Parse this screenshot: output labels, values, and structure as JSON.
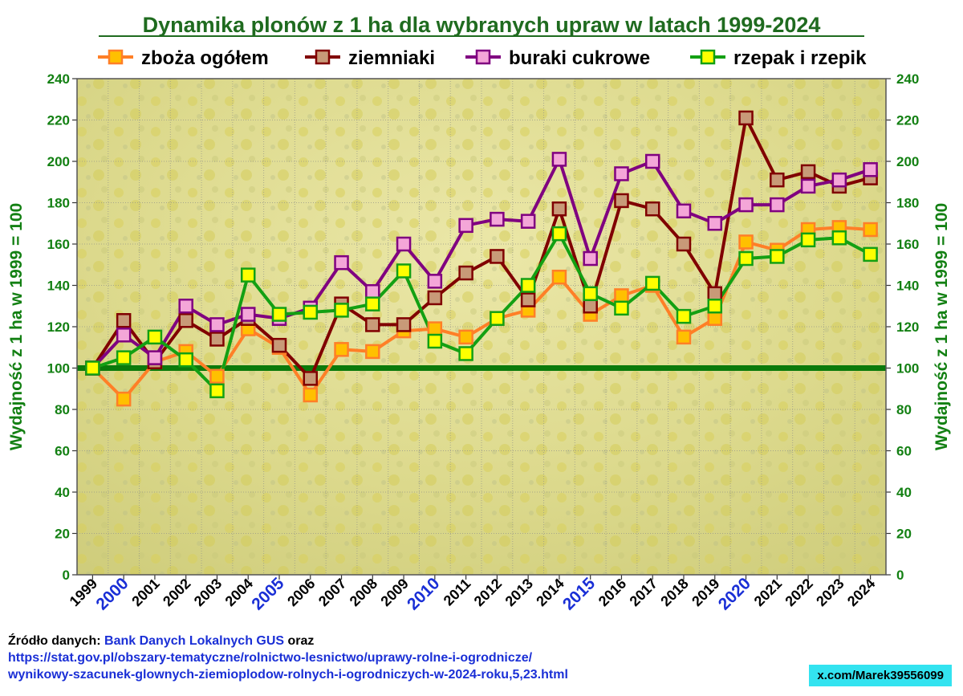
{
  "chart_data": {
    "type": "line",
    "title": "Dynamika plonów z 1 ha dla wybranych upraw w latach 1999-2024",
    "ylabel": "Wydajność z 1 ha w 1999 = 100",
    "ylim": [
      0,
      240
    ],
    "yticks": [
      0,
      20,
      40,
      60,
      80,
      100,
      120,
      140,
      160,
      180,
      200,
      220,
      240
    ],
    "legend_position": "top",
    "grid": true,
    "reference_line": 100,
    "x": [
      "1999",
      "2000",
      "2001",
      "2002",
      "2003",
      "2004",
      "2005",
      "2006",
      "2007",
      "2008",
      "2009",
      "2010",
      "2011",
      "2012",
      "2013",
      "2014",
      "2015",
      "2016",
      "2017",
      "2018",
      "2019",
      "2020",
      "2021",
      "2022",
      "2023",
      "2024"
    ],
    "highlighted_years": [
      "2000",
      "2005",
      "2010",
      "2015",
      "2020"
    ],
    "series": [
      {
        "name": "zboża ogółem",
        "line_color": "#ff7f27",
        "marker_color": "#ffc000",
        "values": [
          100,
          85,
          103,
          108,
          96,
          119,
          110,
          87,
          109,
          108,
          118,
          119,
          115,
          124,
          128,
          144,
          126,
          135,
          140,
          115,
          124,
          161,
          157,
          167,
          168,
          167
        ]
      },
      {
        "name": "ziemniaki",
        "line_color": "#800000",
        "marker_color": "#c89a78",
        "values": [
          100,
          123,
          103,
          123,
          114,
          124,
          111,
          95,
          131,
          121,
          121,
          134,
          146,
          154,
          133,
          177,
          130,
          181,
          177,
          160,
          136,
          221,
          191,
          195,
          188,
          192
        ]
      },
      {
        "name": "buraki cukrowe",
        "line_color": "#800080",
        "marker_color": "#f4a6d8",
        "values": [
          100,
          116,
          105,
          130,
          121,
          126,
          124,
          129,
          151,
          137,
          160,
          142,
          169,
          172,
          171,
          201,
          153,
          194,
          200,
          176,
          170,
          179,
          179,
          188,
          191,
          196
        ]
      },
      {
        "name": "rzepak i rzepik",
        "line_color": "#13a013",
        "marker_color": "#ffff00",
        "values": [
          100,
          105,
          115,
          104,
          89,
          145,
          126,
          127,
          128,
          131,
          147,
          113,
          107,
          124,
          140,
          165,
          136,
          129,
          141,
          125,
          130,
          153,
          154,
          162,
          163,
          155
        ]
      }
    ]
  },
  "source": {
    "label": "Źródło danych:",
    "name": "Bank Danych Lokalnych GUS",
    "suffix": "oraz",
    "url_line1": "https://stat.gov.pl/obszary-tematyczne/rolnictwo-lesnictwo/uprawy-rolne-i-ogrodnicze/",
    "url_line2": "wynikowy-szacunek-glownych-ziemioplodow-rolnych-i-ogrodniczych-w-2024-roku,5,23.html"
  },
  "handle": "x.com/Marek39556099"
}
